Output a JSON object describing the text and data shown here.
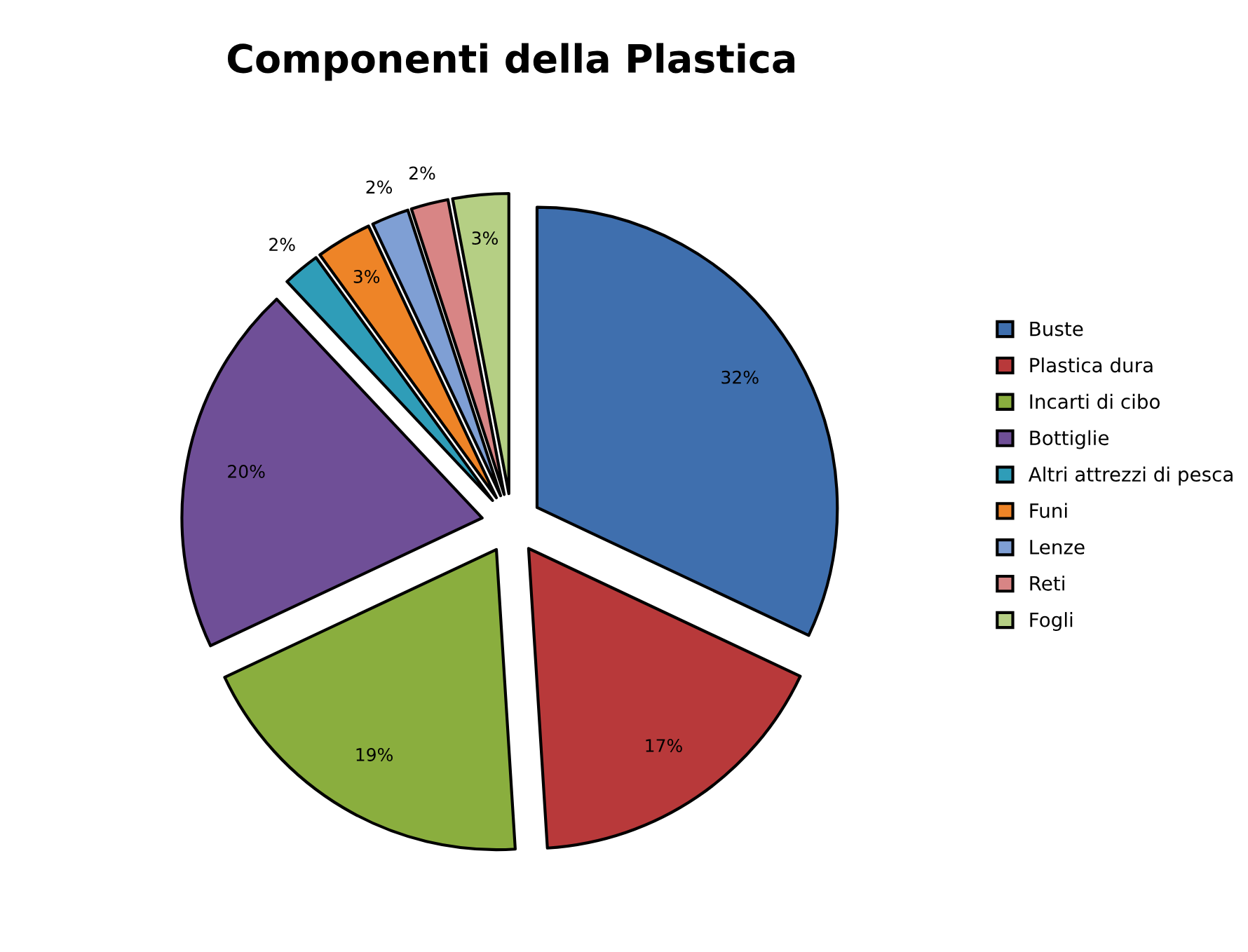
{
  "chart_data": {
    "type": "pie",
    "title": "Componenti della Plastica",
    "categories": [
      "Buste",
      "Plastica dura",
      "Incarti di cibo",
      "Bottiglie",
      "Altri attrezzi di pesca",
      "Funi",
      "Lenze",
      "Reti",
      "Fogli"
    ],
    "values": [
      32,
      17,
      19,
      20,
      2,
      3,
      2,
      2,
      3
    ],
    "value_labels": [
      "32%",
      "17%",
      "19%",
      "20%",
      "2%",
      "3%",
      "2%",
      "2%",
      "3%"
    ],
    "colors": [
      "#3f6fae",
      "#b8393a",
      "#8aae3e",
      "#6f4f97",
      "#2f9db8",
      "#ee8427",
      "#7f9fd4",
      "#d88585",
      "#b5cf84"
    ],
    "legend": "right"
  }
}
